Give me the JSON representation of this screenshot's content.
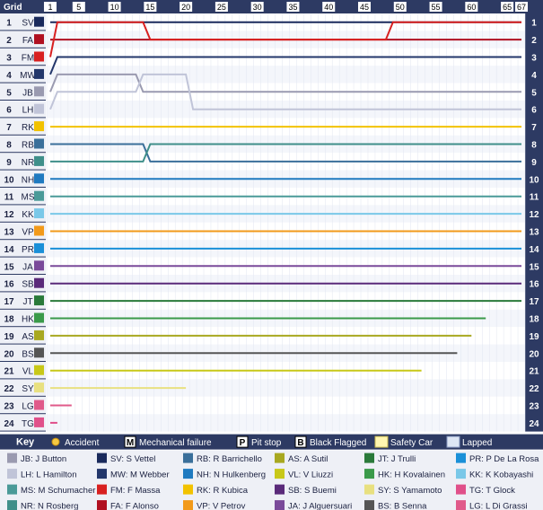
{
  "chart_data": {
    "type": "line",
    "title": "",
    "header_label": "Grid",
    "laps_total": 67,
    "x_ticks": [
      1,
      5,
      10,
      15,
      20,
      25,
      30,
      35,
      40,
      45,
      50,
      55,
      60,
      65,
      67
    ],
    "positions": 24,
    "grid": [
      {
        "pos": 1,
        "code": "SV",
        "color": "#1a2a5c"
      },
      {
        "pos": 2,
        "code": "FA",
        "color": "#b01020"
      },
      {
        "pos": 3,
        "code": "FM",
        "color": "#d82020"
      },
      {
        "pos": 4,
        "code": "MW",
        "color": "#23376b"
      },
      {
        "pos": 5,
        "code": "JB",
        "color": "#9a9ab0"
      },
      {
        "pos": 6,
        "code": "LH",
        "color": "#c0c4d8"
      },
      {
        "pos": 7,
        "code": "RK",
        "color": "#f2c200"
      },
      {
        "pos": 8,
        "code": "RB",
        "color": "#3a6f9a"
      },
      {
        "pos": 9,
        "code": "NR",
        "color": "#3f8f8a"
      },
      {
        "pos": 10,
        "code": "NH",
        "color": "#1f7ac0"
      },
      {
        "pos": 11,
        "code": "MS",
        "color": "#4a9a98"
      },
      {
        "pos": 12,
        "code": "KK",
        "color": "#7ac8e8"
      },
      {
        "pos": 13,
        "code": "VP",
        "color": "#f29a1a"
      },
      {
        "pos": 14,
        "code": "PR",
        "color": "#1a90d8"
      },
      {
        "pos": 15,
        "code": "JA",
        "color": "#7a4a9a"
      },
      {
        "pos": 16,
        "code": "SB",
        "color": "#5a2a7a"
      },
      {
        "pos": 17,
        "code": "JT",
        "color": "#2a7a3a"
      },
      {
        "pos": 18,
        "code": "HK",
        "color": "#3a9a4a"
      },
      {
        "pos": 19,
        "code": "AS",
        "color": "#a8a820"
      },
      {
        "pos": 20,
        "code": "BS",
        "color": "#555555"
      },
      {
        "pos": 21,
        "code": "VL",
        "color": "#c8c818"
      },
      {
        "pos": 22,
        "code": "SY",
        "color": "#e8e080"
      },
      {
        "pos": 23,
        "code": "LG",
        "color": "#e05a8a"
      },
      {
        "pos": 24,
        "code": "TG",
        "color": "#e0508a"
      }
    ],
    "series": [
      {
        "code": "SV",
        "color": "#1a2a5c",
        "points": [
          [
            1,
            1
          ],
          [
            67,
            1
          ]
        ]
      },
      {
        "code": "FA",
        "color": "#b01020",
        "points": [
          [
            1,
            2
          ],
          [
            2,
            2
          ],
          [
            67,
            2
          ]
        ]
      },
      {
        "code": "FM",
        "color": "#d82020",
        "points": [
          [
            1,
            3
          ],
          [
            2,
            1
          ],
          [
            14,
            1
          ],
          [
            15,
            2
          ],
          [
            48,
            2
          ],
          [
            49,
            1
          ],
          [
            67,
            1
          ]
        ]
      },
      {
        "code": "MW",
        "color": "#23376b",
        "points": [
          [
            1,
            4
          ],
          [
            2,
            3
          ],
          [
            67,
            3
          ]
        ]
      },
      {
        "code": "JB",
        "color": "#9a9ab0",
        "points": [
          [
            1,
            5
          ],
          [
            2,
            4
          ],
          [
            13,
            4
          ],
          [
            14,
            5
          ],
          [
            67,
            5
          ]
        ]
      },
      {
        "code": "LH",
        "color": "#c0c4d8",
        "points": [
          [
            1,
            6
          ],
          [
            2,
            5
          ],
          [
            13,
            5
          ],
          [
            14,
            4
          ],
          [
            20,
            4
          ],
          [
            21,
            6
          ],
          [
            67,
            6
          ]
        ]
      },
      {
        "code": "RK",
        "color": "#f2c200",
        "points": [
          [
            1,
            7
          ],
          [
            67,
            7
          ]
        ]
      },
      {
        "code": "RB",
        "color": "#3a6f9a",
        "points": [
          [
            1,
            8
          ],
          [
            14,
            8
          ],
          [
            15,
            9
          ],
          [
            67,
            9
          ]
        ]
      },
      {
        "code": "NR",
        "color": "#3f8f8a",
        "points": [
          [
            1,
            9
          ],
          [
            14,
            9
          ],
          [
            15,
            8
          ],
          [
            67,
            8
          ]
        ]
      },
      {
        "code": "NH",
        "color": "#1f7ac0",
        "points": [
          [
            1,
            10
          ],
          [
            67,
            10
          ]
        ]
      },
      {
        "code": "MS",
        "color": "#4a9a98",
        "points": [
          [
            1,
            11
          ],
          [
            67,
            11
          ]
        ]
      },
      {
        "code": "KK",
        "color": "#7ac8e8",
        "points": [
          [
            1,
            12
          ],
          [
            67,
            12
          ]
        ]
      },
      {
        "code": "VP",
        "color": "#f29a1a",
        "points": [
          [
            1,
            13
          ],
          [
            67,
            13
          ]
        ]
      },
      {
        "code": "PR",
        "color": "#1a90d8",
        "points": [
          [
            1,
            14
          ],
          [
            67,
            14
          ]
        ]
      },
      {
        "code": "JA",
        "color": "#7a4a9a",
        "points": [
          [
            1,
            15
          ],
          [
            67,
            15
          ]
        ]
      },
      {
        "code": "SB",
        "color": "#5a2a7a",
        "points": [
          [
            1,
            16
          ],
          [
            67,
            16
          ]
        ]
      },
      {
        "code": "JT",
        "color": "#2a7a3a",
        "points": [
          [
            1,
            17
          ],
          [
            67,
            17
          ]
        ]
      },
      {
        "code": "HK",
        "color": "#3a9a4a",
        "points": [
          [
            1,
            18
          ],
          [
            62,
            18
          ]
        ]
      },
      {
        "code": "AS",
        "color": "#a8a820",
        "points": [
          [
            1,
            19
          ],
          [
            60,
            19
          ]
        ]
      },
      {
        "code": "BS",
        "color": "#555555",
        "points": [
          [
            1,
            20
          ],
          [
            58,
            20
          ]
        ]
      },
      {
        "code": "VL",
        "color": "#c8c818",
        "points": [
          [
            1,
            21
          ],
          [
            53,
            21
          ]
        ]
      },
      {
        "code": "SY",
        "color": "#e8e080",
        "points": [
          [
            1,
            22
          ],
          [
            20,
            22
          ]
        ]
      },
      {
        "code": "LG",
        "color": "#e05a8a",
        "points": [
          [
            1,
            23
          ],
          [
            4,
            23
          ]
        ]
      },
      {
        "code": "TG",
        "color": "#e0508a",
        "points": [
          [
            1,
            24
          ],
          [
            2,
            24
          ]
        ]
      }
    ],
    "legend_title": "Key",
    "symbols": [
      {
        "glyph": "☀",
        "label": "Accident",
        "kind": "accident"
      },
      {
        "glyph": "M",
        "label": "Mechanical failure",
        "kind": "mech"
      },
      {
        "glyph": "P",
        "label": "Pit stop",
        "kind": "pit"
      },
      {
        "glyph": "B",
        "label": "Black Flagged",
        "kind": "black"
      },
      {
        "glyph": "",
        "label": "Safety Car",
        "kind": "safety"
      },
      {
        "glyph": "",
        "label": "Lapped",
        "kind": "lapped"
      }
    ],
    "drivers": [
      {
        "code": "JB",
        "label": "JB: J Button",
        "color": "#9a9ab0"
      },
      {
        "code": "SV",
        "label": "SV: S Vettel",
        "color": "#1a2a5c"
      },
      {
        "code": "RB",
        "label": "RB: R Barrichello",
        "color": "#3a6f9a"
      },
      {
        "code": "AS",
        "label": "AS: A Sutil",
        "color": "#a8a820"
      },
      {
        "code": "JT",
        "label": "JT: J Trulli",
        "color": "#2a7a3a"
      },
      {
        "code": "PR",
        "label": "PR: P De La Rosa",
        "color": "#1a90d8"
      },
      {
        "code": "LH",
        "label": "LH: L Hamilton",
        "color": "#c0c4d8"
      },
      {
        "code": "MW",
        "label": "MW: M Webber",
        "color": "#23376b"
      },
      {
        "code": "NH",
        "label": "NH: N Hulkenberg",
        "color": "#1f7ac0"
      },
      {
        "code": "VL",
        "label": "VL: V Liuzzi",
        "color": "#c8c818"
      },
      {
        "code": "HK",
        "label": "HK: H Kovalainen",
        "color": "#3a9a4a"
      },
      {
        "code": "KK",
        "label": "KK: K Kobayashi",
        "color": "#7ac8e8"
      },
      {
        "code": "MS",
        "label": "MS: M Schumacher",
        "color": "#4a9a98"
      },
      {
        "code": "FM",
        "label": "FM: F Massa",
        "color": "#d82020"
      },
      {
        "code": "RK",
        "label": "RK: R Kubica",
        "color": "#f2c200"
      },
      {
        "code": "SB",
        "label": "SB: S Buemi",
        "color": "#5a2a7a"
      },
      {
        "code": "SY",
        "label": "SY: S Yamamoto",
        "color": "#e8e080"
      },
      {
        "code": "TG",
        "label": "TG: T Glock",
        "color": "#e0508a"
      },
      {
        "code": "NR",
        "label": "NR: N Rosberg",
        "color": "#3f8f8a"
      },
      {
        "code": "FA",
        "label": "FA: F Alonso",
        "color": "#b01020"
      },
      {
        "code": "VP",
        "label": "VP: V Petrov",
        "color": "#f29a1a"
      },
      {
        "code": "JA",
        "label": "JA: J Alguersuari",
        "color": "#7a4a9a"
      },
      {
        "code": "BS",
        "label": "BS: B Senna",
        "color": "#555555"
      },
      {
        "code": "LG",
        "label": "LG: L Di Grassi",
        "color": "#e05a8a"
      }
    ]
  }
}
